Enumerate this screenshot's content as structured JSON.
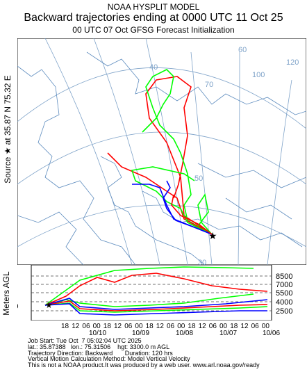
{
  "header": {
    "line1": "NOAA HYSPLIT MODEL",
    "line2": "Backward trajectories ending at 0000 UTC 11 Oct 25",
    "line3": "00 UTC 07 Oct    GFSG  Forecast Initialization"
  },
  "side_label": {
    "source_label": "Source ★  at   35.87 N   75.32 E",
    "vertical_axis": "Meters AGL"
  },
  "map": {
    "grid_labels": [
      "40",
      "50",
      "60",
      "70",
      "100",
      "120",
      "30"
    ],
    "source_location": {
      "lat": 35.87,
      "lon": 75.32
    }
  },
  "profile": {
    "start_height": "3300",
    "right_axis_values": [
      "8500",
      "7000",
      "5500",
      "4000",
      "2500"
    ],
    "hour_ticks": [
      "18",
      "12",
      "06",
      "00",
      "18",
      "12",
      "06",
      "00",
      "18",
      "12",
      "06",
      "00",
      "18",
      "12",
      "06",
      "00",
      "18",
      "12",
      "06",
      "00"
    ],
    "date_labels": [
      "10/10",
      "10/09",
      "10/08",
      "10/07",
      "10/06"
    ]
  },
  "colors": {
    "red": "#ff0000",
    "blue": "#0000ff",
    "green": "#00ff00",
    "grid": "#7fa3c9"
  },
  "footer": {
    "line1": "Job Start: Tue Oct  7 05:02:04 UTC 2025",
    "line2": "lat.: 35.87388   lon.: 75.31506    hgt: 3300.0 m AGL",
    "line3": "Trajectory Direction: Backward       Duration: 120 hrs",
    "line4": "Vertical Motion Calculation Method: Model Vertical Velocity",
    "line5": "This is not a NOAA product.It was produced by a web user. www.arl.noaa.gov/ready"
  }
}
